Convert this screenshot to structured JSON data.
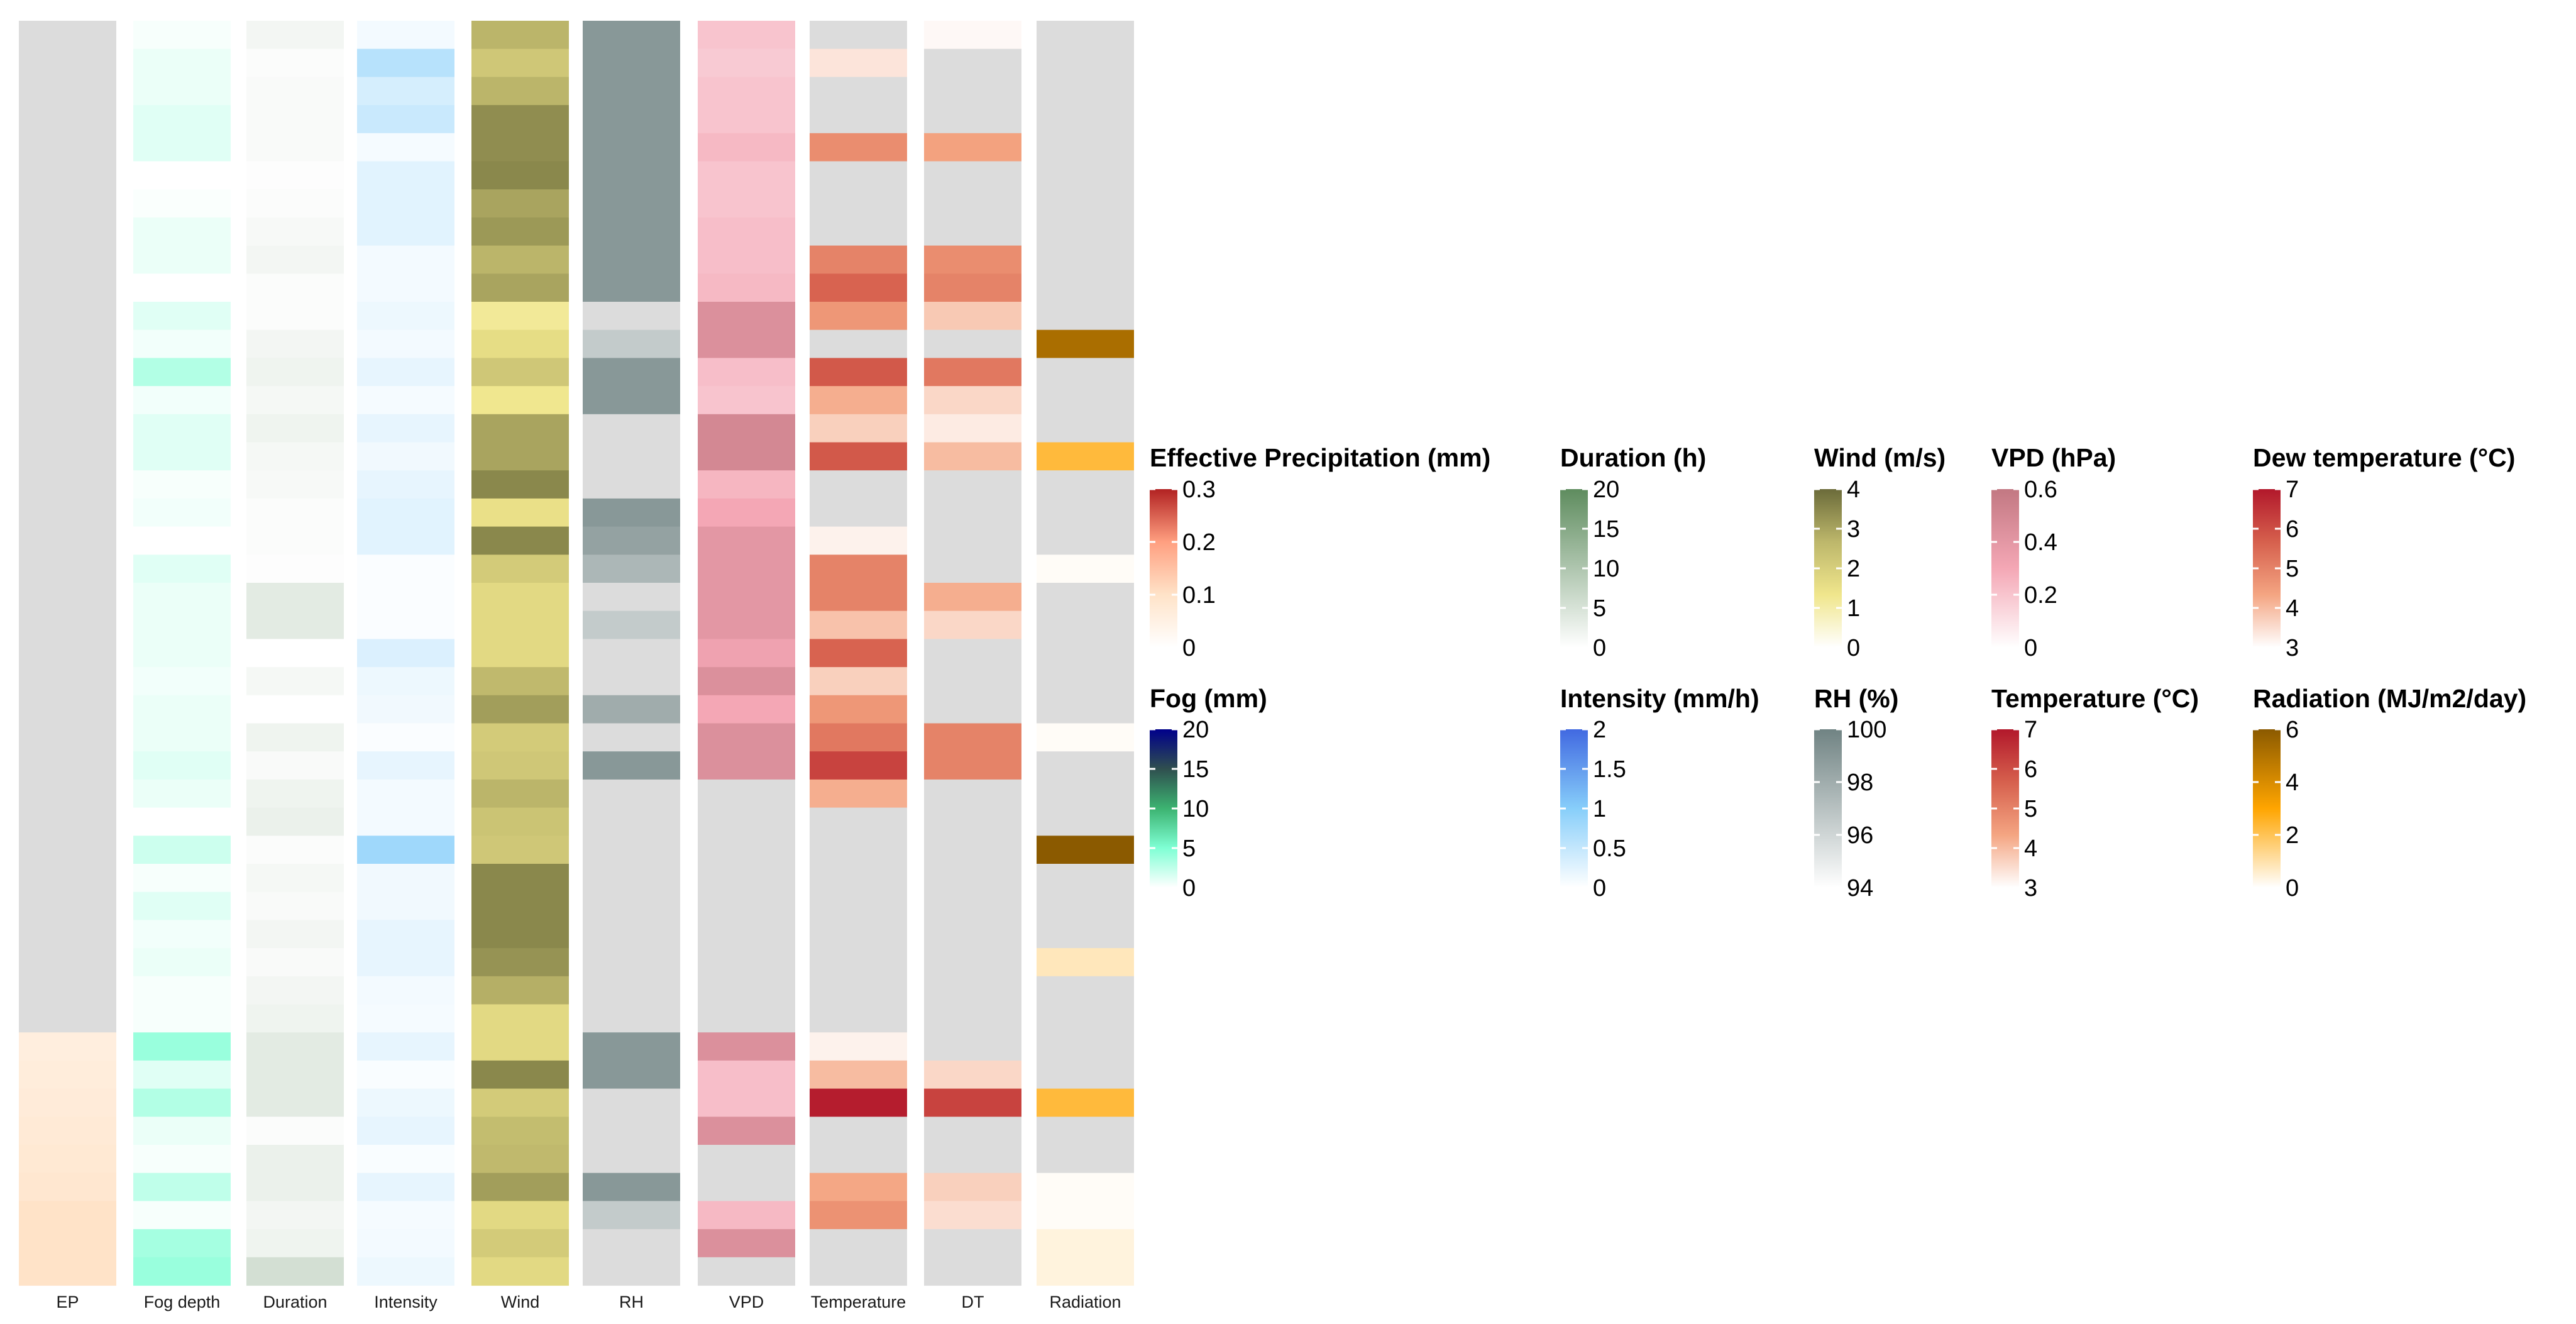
{
  "chart_data": {
    "type": "heatmap",
    "n_rows": 45,
    "na_color": "#DCDCDC",
    "columns": [
      {
        "key": "EP",
        "label": "EP",
        "scale": "ep"
      },
      {
        "key": "fog",
        "label": "Fog depth",
        "scale": "fog"
      },
      {
        "key": "duration",
        "label": "Duration",
        "scale": "duration"
      },
      {
        "key": "intensity",
        "label": "Intensity",
        "scale": "intensity"
      },
      {
        "key": "wind",
        "label": "Wind",
        "scale": "wind"
      },
      {
        "key": "rh",
        "label": "RH",
        "scale": "rh"
      },
      {
        "key": "vpd",
        "label": "VPD",
        "scale": "vpd"
      },
      {
        "key": "temperature",
        "label": "Temperature",
        "scale": "temperature"
      },
      {
        "key": "dt",
        "label": "DT",
        "scale": "dew"
      },
      {
        "key": "radiation",
        "label": "Radiation",
        "scale": "radiation"
      }
    ],
    "scales": {
      "ep": {
        "title": "Effective Precipitation (mm)",
        "min": 0,
        "max": 0.3,
        "ticks": [
          0,
          0.1,
          0.2,
          0.3
        ],
        "colors": [
          "#FFFFFF",
          "#FFE3C8",
          "#FF9F80",
          "#B22222"
        ]
      },
      "fog": {
        "title": "Fog (mm)",
        "min": 0,
        "max": 20,
        "ticks": [
          0,
          5,
          10,
          15,
          20
        ],
        "colors": [
          "#FFFFFF",
          "#7FFFD4",
          "#3CB371",
          "#2F4F4F",
          "#00008B"
        ]
      },
      "duration": {
        "title": "Duration (h)",
        "min": 0,
        "max": 20,
        "ticks": [
          0,
          5,
          10,
          15,
          20
        ],
        "colors": [
          "#FFFFFF",
          "#5E8C5E"
        ]
      },
      "intensity": {
        "title": "Intensity (mm/h)",
        "min": 0,
        "max": 2,
        "ticks": [
          0,
          0.5,
          1,
          1.5,
          2
        ],
        "colors": [
          "#FFFFFF",
          "#87CEFA",
          "#4169E1"
        ]
      },
      "wind": {
        "title": "Wind (m/s)",
        "min": 0,
        "max": 4,
        "ticks": [
          0,
          1,
          2,
          3,
          4
        ],
        "colors": [
          "#FFFFFF",
          "#F0E68C",
          "#BDB76B",
          "#6B6B3A"
        ]
      },
      "rh": {
        "title": "RH (%)",
        "min": 94,
        "max": 100,
        "ticks": [
          94,
          96,
          98,
          100
        ],
        "colors": [
          "#FFFFFF",
          "#708383"
        ]
      },
      "vpd": {
        "title": "VPD (hPa)",
        "min": 0,
        "max": 0.6,
        "ticks": [
          0,
          0.2,
          0.4,
          0.6
        ],
        "colors": [
          "#FFFFFF",
          "#F4A7B5",
          "#C27882"
        ]
      },
      "temperature": {
        "title": "Temperature (°C)",
        "min": 3,
        "max": 7,
        "ticks": [
          3,
          4,
          5,
          6,
          7
        ],
        "colors": [
          "#FFFFFF",
          "#F4A582",
          "#D6604D",
          "#B2182B"
        ]
      },
      "dew": {
        "title": "Dew temperature (°C)",
        "min": 3,
        "max": 7,
        "ticks": [
          3,
          4,
          5,
          6,
          7
        ],
        "colors": [
          "#FFFFFF",
          "#F4A582",
          "#D6604D",
          "#B2182B"
        ]
      },
      "radiation": {
        "title": "Radiation (MJ/m2/day)",
        "min": 0,
        "max": 6,
        "ticks": [
          0,
          2,
          4,
          6
        ],
        "colors": [
          "#FFFFFF",
          "#FFA500",
          "#8B5A00"
        ]
      }
    },
    "legend_order": [
      [
        "ep",
        "duration",
        "wind",
        "vpd",
        "dew"
      ],
      [
        "fog",
        "intensity",
        "rh",
        "temperature",
        "radiation"
      ]
    ],
    "values": {
      "EP": [
        null,
        null,
        null,
        null,
        null,
        null,
        null,
        null,
        null,
        null,
        null,
        null,
        null,
        null,
        null,
        null,
        null,
        null,
        null,
        null,
        null,
        null,
        null,
        null,
        null,
        null,
        null,
        null,
        null,
        null,
        null,
        null,
        null,
        null,
        null,
        null,
        0.06,
        0.065,
        0.07,
        0.075,
        0.08,
        0.085,
        0.1,
        0.1,
        0.1
      ],
      "fog": [
        0.3,
        0.8,
        0.8,
        1.2,
        1.2,
        0,
        0.2,
        0.8,
        0.8,
        0,
        1.2,
        0.5,
        3,
        0.5,
        1.2,
        1.2,
        0.3,
        0.5,
        0,
        1.2,
        0.8,
        0.8,
        0.8,
        0.5,
        0.8,
        0.8,
        1.2,
        0.8,
        0,
        2,
        0.3,
        1.2,
        0.5,
        0.8,
        0.3,
        0.3,
        4,
        1.2,
        3,
        0.8,
        0.3,
        2.5,
        0.3,
        3.5,
        4
      ],
      "duration": [
        1.5,
        0.5,
        0.8,
        0.8,
        0.8,
        0.3,
        0.5,
        1,
        1.5,
        0.5,
        0.5,
        1.5,
        2,
        1.2,
        2,
        1.2,
        1,
        0.5,
        0.5,
        0.3,
        3.5,
        3.5,
        0,
        1.2,
        0,
        2,
        0.8,
        2,
        2.5,
        0.5,
        1.2,
        0.8,
        1.5,
        0.8,
        1.5,
        2,
        3.5,
        3.5,
        3.5,
        0.5,
        2.5,
        2.5,
        1.5,
        2,
        5.5
      ],
      "intensity": [
        0.1,
        0.6,
        0.35,
        0.45,
        0.08,
        0.25,
        0.25,
        0.25,
        0.1,
        0.1,
        0.15,
        0.1,
        0.2,
        0.08,
        0.2,
        0.12,
        0.2,
        0.25,
        0.25,
        0.04,
        0.04,
        0.04,
        0.3,
        0.15,
        0.12,
        0.04,
        0.2,
        0.1,
        0.1,
        0.8,
        0.12,
        0.12,
        0.2,
        0.2,
        0.1,
        0.08,
        0.2,
        0.05,
        0.15,
        0.2,
        0.05,
        0.2,
        0.08,
        0.1,
        0.15
      ],
      "wind": [
        2.7,
        2.2,
        2.7,
        3.4,
        3.4,
        3.5,
        3.0,
        3.2,
        2.7,
        3.0,
        1.2,
        1.6,
        2.2,
        1.3,
        3.0,
        3.0,
        3.5,
        1.5,
        3.5,
        2.1,
        1.7,
        1.7,
        1.7,
        2.6,
        3.1,
        2.1,
        2.2,
        2.7,
        2.3,
        2.2,
        3.5,
        3.5,
        3.5,
        3.3,
        2.8,
        1.7,
        1.7,
        3.5,
        2.1,
        2.5,
        2.6,
        3.1,
        1.7,
        2.1,
        1.7
      ],
      "rh": [
        99,
        99,
        99,
        99,
        99,
        99,
        99,
        99,
        99,
        99,
        null,
        96.5,
        99,
        99,
        null,
        null,
        null,
        99,
        98.5,
        97.5,
        null,
        96.5,
        null,
        null,
        98,
        null,
        99,
        null,
        null,
        null,
        null,
        null,
        null,
        null,
        null,
        null,
        99,
        99,
        null,
        null,
        null,
        99,
        96.5,
        null,
        null
      ],
      "vpd": [
        0.2,
        0.18,
        0.2,
        0.2,
        0.24,
        0.2,
        0.2,
        0.22,
        0.22,
        0.24,
        0.45,
        0.45,
        0.22,
        0.2,
        0.5,
        0.5,
        0.25,
        0.3,
        0.4,
        0.4,
        0.4,
        0.4,
        0.33,
        0.45,
        0.3,
        0.45,
        0.45,
        null,
        null,
        null,
        null,
        null,
        null,
        null,
        null,
        null,
        0.45,
        0.22,
        0.22,
        0.45,
        null,
        null,
        0.24,
        0.45,
        null
      ],
      "temperature": [
        null,
        3.4,
        null,
        null,
        4.8,
        null,
        null,
        null,
        5.0,
        5.6,
        4.6,
        null,
        5.8,
        4.2,
        3.7,
        5.8,
        null,
        null,
        3.2,
        5.0,
        5.0,
        3.9,
        5.6,
        3.7,
        4.6,
        5.2,
        6.2,
        4.2,
        null,
        null,
        null,
        null,
        null,
        null,
        null,
        null,
        3.2,
        4.0,
        6.9,
        null,
        null,
        4.3,
        4.7,
        null,
        null
      ],
      "dt": [
        3.1,
        null,
        null,
        null,
        4.4,
        null,
        null,
        null,
        4.8,
        5.0,
        3.8,
        null,
        5.2,
        3.6,
        3.3,
        4.0,
        null,
        null,
        null,
        null,
        4.2,
        3.6,
        null,
        null,
        null,
        5.0,
        5.0,
        null,
        null,
        null,
        null,
        null,
        null,
        null,
        null,
        null,
        null,
        3.6,
        6.2,
        null,
        null,
        3.7,
        3.5,
        null,
        null
      ],
      "radiation": [
        null,
        null,
        null,
        null,
        null,
        null,
        null,
        null,
        null,
        null,
        null,
        5.2,
        null,
        null,
        null,
        2.3,
        null,
        null,
        null,
        0.1,
        null,
        null,
        null,
        null,
        null,
        0.1,
        null,
        null,
        null,
        6.0,
        null,
        null,
        null,
        0.8,
        null,
        null,
        null,
        null,
        2.3,
        null,
        null,
        0.1,
        0.1,
        0.4,
        0.4
      ]
    }
  }
}
